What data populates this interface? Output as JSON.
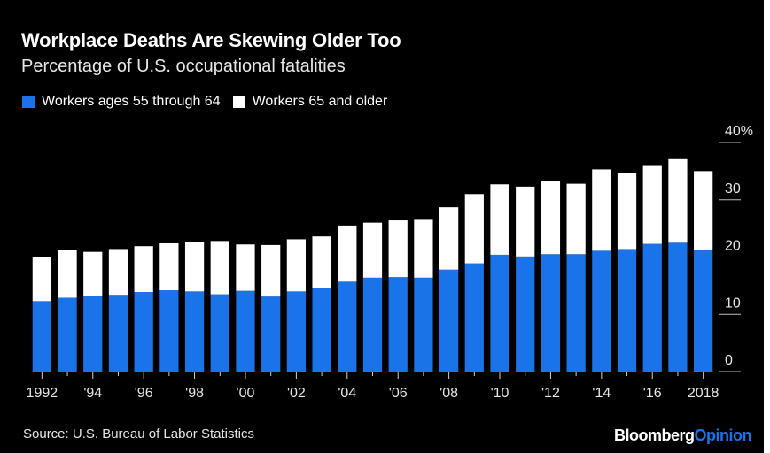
{
  "title": "Workplace Deaths Are Skewing Older Too",
  "subtitle": "Percentage of U.S. occupational fatalities",
  "source": "Source: U.S. Bureau of Labor Statistics",
  "brand": {
    "part1": "Bloomberg",
    "part2": "Opinion"
  },
  "colors": {
    "background": "#000000",
    "series_55_64": "#1a73e8",
    "series_65_plus": "#ffffff",
    "axis": "#cccccc"
  },
  "chart_data": {
    "type": "bar",
    "stacked": true,
    "categories": [
      "1992",
      "1993",
      "1994",
      "1995",
      "1996",
      "1997",
      "1998",
      "1999",
      "2000",
      "2001",
      "2002",
      "2003",
      "2004",
      "2005",
      "2006",
      "2007",
      "2008",
      "2009",
      "2010",
      "2011",
      "2012",
      "2013",
      "2014",
      "2015",
      "2016",
      "2017",
      "2018"
    ],
    "x_tick_labels": [
      "1992",
      "",
      "'94",
      "",
      "'96",
      "",
      "'98",
      "",
      "'00",
      "",
      "'02",
      "",
      "'04",
      "",
      "'06",
      "",
      "'08",
      "",
      "'10",
      "",
      "'12",
      "",
      "'14",
      "",
      "'16",
      "",
      "2018"
    ],
    "series": [
      {
        "name": "Workers ages 55 through 64",
        "color": "#1a73e8",
        "values": [
          12.3,
          12.9,
          13.2,
          13.4,
          13.9,
          14.2,
          14.0,
          13.5,
          14.1,
          13.1,
          14.0,
          14.6,
          15.7,
          16.4,
          16.5,
          16.4,
          17.8,
          18.9,
          20.4,
          20.1,
          20.5,
          20.5,
          21.1,
          21.4,
          22.3,
          22.5,
          21.2
        ]
      },
      {
        "name": "Workers 65 and older",
        "color": "#ffffff",
        "values": [
          7.7,
          8.3,
          7.7,
          8.0,
          8.0,
          8.2,
          8.7,
          9.3,
          8.1,
          9.0,
          9.1,
          9.0,
          9.8,
          9.6,
          9.9,
          10.1,
          10.9,
          12.1,
          12.3,
          12.2,
          12.7,
          12.3,
          14.2,
          13.3,
          13.6,
          14.6,
          13.8
        ]
      }
    ],
    "y_ticks": [
      "40%",
      "30",
      "20",
      "10",
      "0"
    ],
    "ylim": [
      0,
      40
    ],
    "y_axis_position": "right",
    "grid": true,
    "legend_position": "top-left"
  }
}
